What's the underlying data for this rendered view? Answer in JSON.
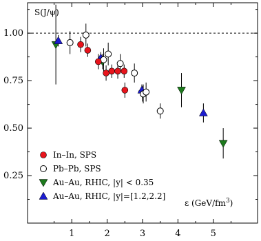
{
  "chart_data": {
    "type": "scatter",
    "ylabel": "S(J/ψ)",
    "xlabel": "ε (GeV/fm",
    "xlabel_sup": "3",
    "xlabel_close": ")",
    "xlim": [
      -0.25,
      6.25
    ],
    "ylim": [
      0.0,
      1.16
    ],
    "x_ticks": [
      1,
      2,
      3,
      4,
      5
    ],
    "y_ticks": [
      0.25,
      0.5,
      0.75,
      1.0
    ],
    "x_tick_labels": [
      "1",
      "2",
      "3",
      "4",
      "5"
    ],
    "y_tick_labels": [
      "0.25",
      "0.50",
      "0.75",
      "1.00"
    ],
    "reference_line": 1.0,
    "legend_position": "bottom-left",
    "series": [
      {
        "name": "In–In, SPS",
        "marker": "circle-filled",
        "color": "#e8141c",
        "points": [
          {
            "x": 1.25,
            "y": 0.94,
            "err": 0.04
          },
          {
            "x": 1.45,
            "y": 0.91,
            "err": 0.035
          },
          {
            "x": 1.75,
            "y": 0.85,
            "err": 0.04
          },
          {
            "x": 1.97,
            "y": 0.79,
            "err": 0.04
          },
          {
            "x": 2.13,
            "y": 0.8,
            "err": 0.035
          },
          {
            "x": 2.3,
            "y": 0.8,
            "err": 0.04
          },
          {
            "x": 2.48,
            "y": 0.8,
            "err": 0.035
          },
          {
            "x": 2.5,
            "y": 0.7,
            "err": 0.04
          }
        ]
      },
      {
        "name": "Pb–Pb, SPS",
        "marker": "circle-open",
        "color": "#000000",
        "points": [
          {
            "x": 0.95,
            "y": 0.95,
            "err": 0.06
          },
          {
            "x": 1.4,
            "y": 0.99,
            "err": 0.06
          },
          {
            "x": 1.9,
            "y": 0.86,
            "err": 0.06
          },
          {
            "x": 2.03,
            "y": 0.89,
            "err": 0.06
          },
          {
            "x": 2.37,
            "y": 0.84,
            "err": 0.05
          },
          {
            "x": 2.77,
            "y": 0.79,
            "err": 0.05
          },
          {
            "x": 3.02,
            "y": 0.68,
            "err": 0.05
          },
          {
            "x": 3.1,
            "y": 0.69,
            "err": 0.05
          },
          {
            "x": 3.5,
            "y": 0.59,
            "err": 0.04
          }
        ]
      },
      {
        "name": "Au–Au, RHIC, |y| < 0.35",
        "marker": "triangle-down",
        "color": "#1d7a1d",
        "points": [
          {
            "x": 0.55,
            "y": 0.94,
            "err": 0.21
          },
          {
            "x": 1.87,
            "y": 0.85,
            "err": 0.04
          },
          {
            "x": 3.0,
            "y": 0.68,
            "err": 0.04
          },
          {
            "x": 4.1,
            "y": 0.7,
            "err": 0.09
          },
          {
            "x": 5.28,
            "y": 0.42,
            "err": 0.08
          }
        ]
      },
      {
        "name": "Au–Au, RHIC, |y|=[1.2,2.2]",
        "marker": "triangle-up",
        "color": "#1c1cd0",
        "points": [
          {
            "x": 0.62,
            "y": 0.96,
            "err": 0.03
          },
          {
            "x": 1.82,
            "y": 0.87,
            "err": 0.03
          },
          {
            "x": 2.98,
            "y": 0.7,
            "err": 0.03
          },
          {
            "x": 4.72,
            "y": 0.58,
            "err": 0.05
          }
        ]
      }
    ]
  }
}
